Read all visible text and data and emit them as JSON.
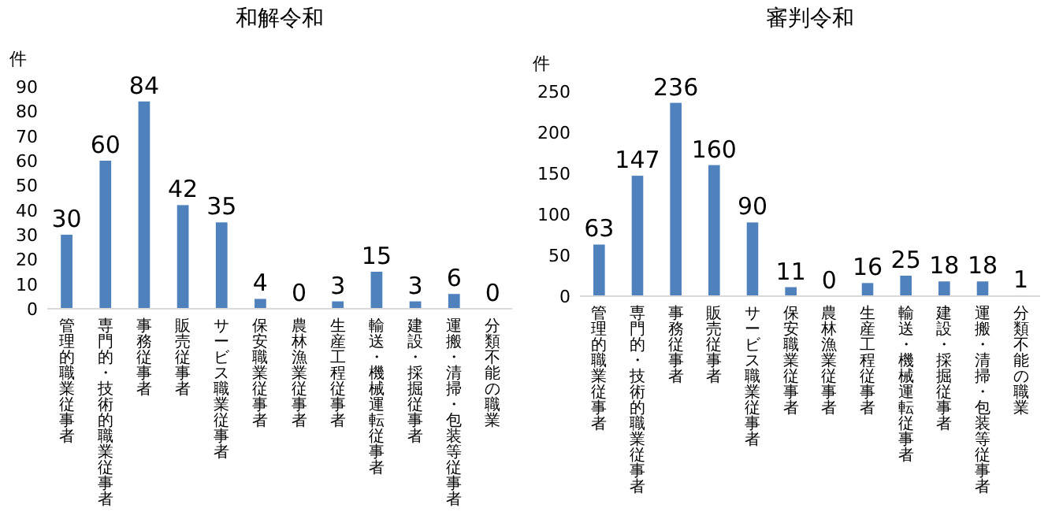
{
  "chart_data": [
    {
      "type": "bar",
      "title": "和解令和",
      "ylabel": "件",
      "categories": [
        "管理的職業従事者",
        "専門的・技術的職業従事者",
        "事務従事者",
        "販売従事者",
        "サービス職業従事者",
        "保安職業従事者",
        "農林漁業従事者",
        "生産工程従事者",
        "輸送・機械運転従事者",
        "建設・採掘従事者",
        "運搬・清掃・包装等従事者",
        "分類不能の職業"
      ],
      "values": [
        30,
        60,
        84,
        42,
        35,
        4,
        0,
        3,
        15,
        3,
        6,
        0
      ],
      "color": "#4f81bd",
      "ylim": [
        0,
        90
      ],
      "yticks": [
        0,
        10,
        20,
        30,
        40,
        50,
        60,
        70,
        80,
        90
      ],
      "data_labels": true
    },
    {
      "type": "bar",
      "title": "審判令和",
      "ylabel": "件",
      "categories": [
        "管理的職業従事者",
        "専門的・技術的職業従事者",
        "事務従事者",
        "販売従事者",
        "サービス職業従事者",
        "保安職業従事者",
        "農林漁業従事者",
        "生産工程従事者",
        "輸送・機械運転従事者",
        "建設・採掘従事者",
        "運搬・清掃・包装等従事者",
        "分類不能の職業"
      ],
      "values": [
        63,
        147,
        236,
        160,
        90,
        11,
        0,
        16,
        25,
        18,
        18,
        1
      ],
      "color": "#4f81bd",
      "ylim": [
        0,
        250
      ],
      "yticks": [
        0,
        50,
        100,
        150,
        200,
        250
      ],
      "data_labels": true
    }
  ]
}
